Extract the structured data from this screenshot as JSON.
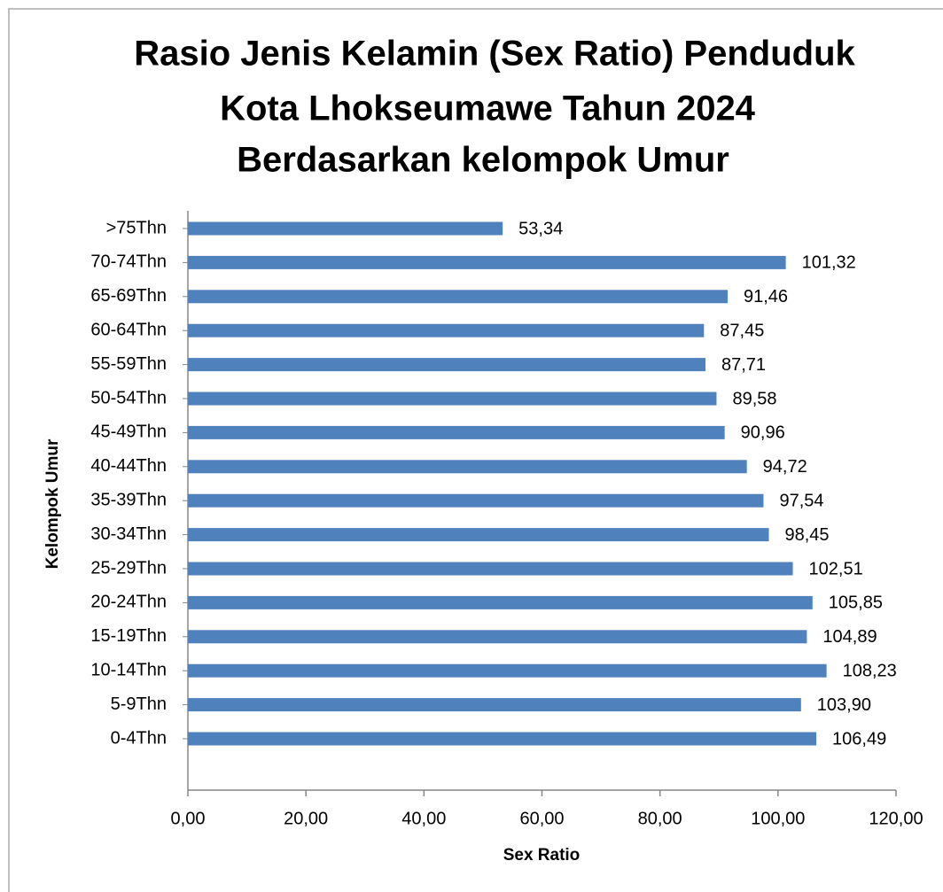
{
  "chart_data": {
    "type": "bar",
    "orientation": "horizontal",
    "title": [
      "Rasio Jenis Kelamin (Sex Ratio) Penduduk",
      "Kota Lhokseumawe Tahun 2024",
      "Berdasarkan kelompok Umur"
    ],
    "xlabel": "Sex Ratio",
    "ylabel": "Kelompok Umur",
    "categories": [
      ">75Thn",
      "70-74Thn",
      "65-69Thn",
      "60-64Thn",
      "55-59Thn",
      "50-54Thn",
      "45-49Thn",
      "40-44Thn",
      "35-39Thn",
      "30-34Thn",
      "25-29Thn",
      "20-24Thn",
      "15-19Thn",
      "10-14Thn",
      "5-9Thn",
      "0-4Thn"
    ],
    "values": [
      53.34,
      101.32,
      91.46,
      87.45,
      87.71,
      89.58,
      90.96,
      94.72,
      97.54,
      98.45,
      102.51,
      105.85,
      104.89,
      108.23,
      103.9,
      106.49
    ],
    "value_labels": [
      "53,34",
      "101,32",
      "91,46",
      "87,45",
      "87,71",
      "89,58",
      "90,96",
      "94,72",
      "97,54",
      "98,45",
      "102,51",
      "105,85",
      "104,89",
      "108,23",
      "103,90",
      "106,49"
    ],
    "color": "#4f81bd",
    "xlim": [
      0,
      120
    ],
    "xticks": [
      {
        "value": 0,
        "label": "0,00"
      },
      {
        "value": 20,
        "label": "20,00"
      },
      {
        "value": 40,
        "label": "40,00"
      },
      {
        "value": 60,
        "label": "60,00"
      },
      {
        "value": 80,
        "label": "80,00"
      },
      {
        "value": 100,
        "label": "100,00"
      },
      {
        "value": 120,
        "label": "120,00"
      }
    ],
    "grid": false
  }
}
